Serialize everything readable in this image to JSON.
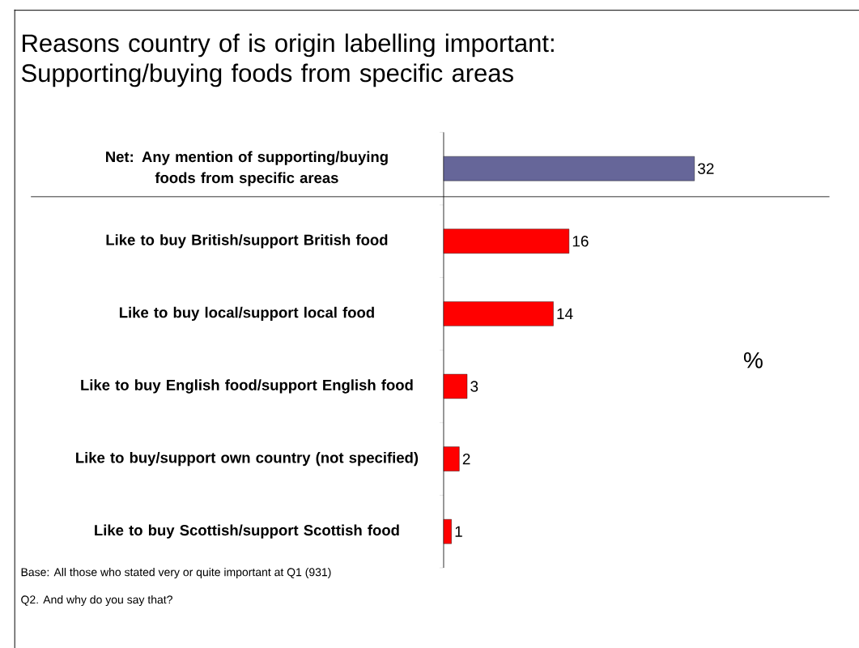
{
  "chart_data": {
    "type": "bar",
    "orientation": "horizontal",
    "title": "Reasons country of is origin labelling important: Supporting/buying foods from specific areas",
    "categories": [
      "Net: Any mention of supporting/buying foods from specific areas",
      "Like to buy British/support British food",
      "Like to buy local/support local food",
      "Like to buy English food/support English food",
      "Like to buy/support own country (not specified)",
      "Like to buy Scottish/support Scottish food"
    ],
    "values": [
      32,
      16,
      14,
      3,
      2,
      1
    ],
    "colors": [
      "#666699",
      "#ff0000",
      "#ff0000",
      "#ff0000",
      "#ff0000",
      "#ff0000"
    ],
    "data_labels": true,
    "annotations": [
      "%",
      "Base: All those who stated very or quite important at Q1 (931)",
      "Q2. And why do you say that?"
    ]
  }
}
